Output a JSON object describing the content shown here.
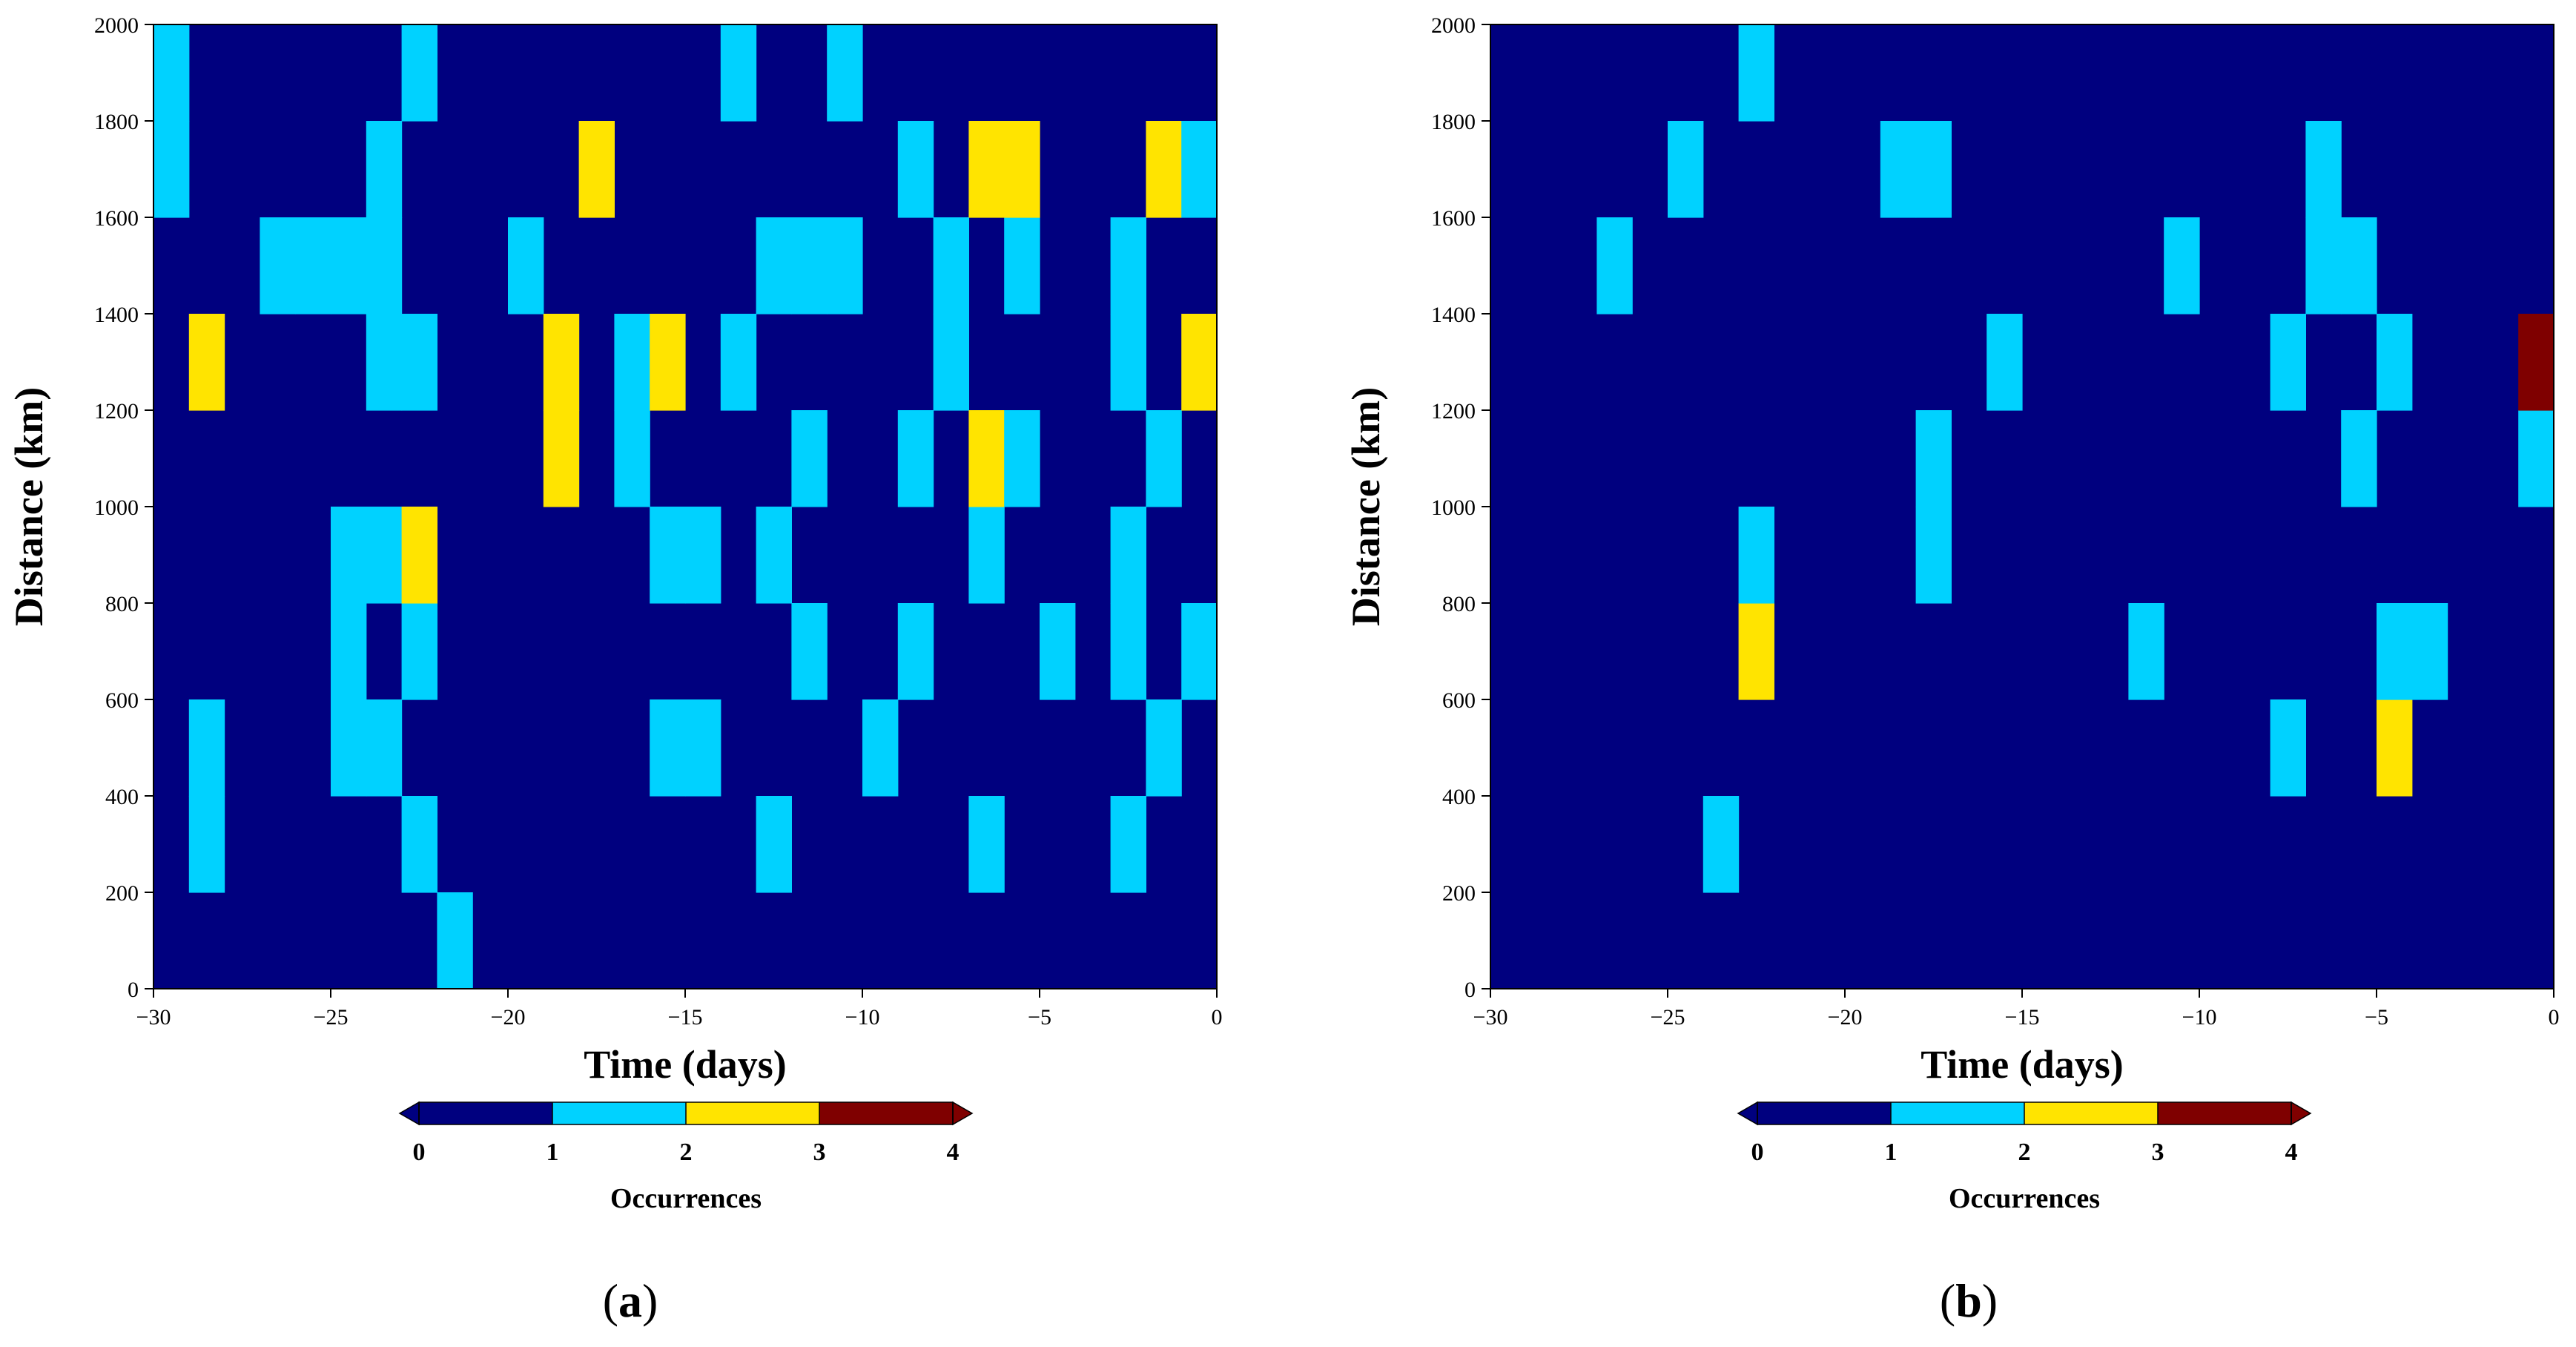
{
  "chart_data": [
    {
      "type": "heatmap",
      "panel_label": "a",
      "xlabel": "Time (days)",
      "ylabel": "Distance (km)",
      "xlim": [
        -30,
        0
      ],
      "ylim": [
        0,
        2000
      ],
      "xticks": [
        -30,
        -25,
        -20,
        -15,
        -10,
        -5,
        0
      ],
      "xtick_labels": [
        "−30",
        "−25",
        "−20",
        "−15",
        "−10",
        "−5",
        "0"
      ],
      "yticks": [
        0,
        200,
        400,
        600,
        800,
        1000,
        1200,
        1400,
        1600,
        1800,
        2000
      ],
      "ytick_labels": [
        "0",
        "200",
        "400",
        "600",
        "800",
        "1000",
        "1200",
        "1400",
        "1600",
        "1800",
        "2000"
      ],
      "x_bin_days": 1,
      "y_bin_km": 200,
      "background_value": 0,
      "cells": [
        {
          "x": -30,
          "y": 1600,
          "count": 1
        },
        {
          "x": -30,
          "y": 1800,
          "count": 1
        },
        {
          "x": -29,
          "y": 200,
          "count": 1
        },
        {
          "x": -29,
          "y": 400,
          "count": 1
        },
        {
          "x": -29,
          "y": 1200,
          "count": 2
        },
        {
          "x": -27,
          "y": 1400,
          "count": 1
        },
        {
          "x": -26,
          "y": 1400,
          "count": 1
        },
        {
          "x": -25,
          "y": 400,
          "count": 1
        },
        {
          "x": -25,
          "y": 600,
          "count": 1
        },
        {
          "x": -25,
          "y": 800,
          "count": 1
        },
        {
          "x": -25,
          "y": 1400,
          "count": 1
        },
        {
          "x": -24,
          "y": 400,
          "count": 1
        },
        {
          "x": -24,
          "y": 800,
          "count": 1
        },
        {
          "x": -24,
          "y": 1200,
          "count": 1
        },
        {
          "x": -24,
          "y": 1400,
          "count": 1
        },
        {
          "x": -24,
          "y": 1600,
          "count": 1
        },
        {
          "x": -23,
          "y": 200,
          "count": 1
        },
        {
          "x": -23,
          "y": 600,
          "count": 1
        },
        {
          "x": -23,
          "y": 800,
          "count": 2
        },
        {
          "x": -23,
          "y": 1200,
          "count": 1
        },
        {
          "x": -23,
          "y": 1800,
          "count": 1
        },
        {
          "x": -22,
          "y": 0,
          "count": 1
        },
        {
          "x": -20,
          "y": 1400,
          "count": 1
        },
        {
          "x": -19,
          "y": 1000,
          "count": 2
        },
        {
          "x": -19,
          "y": 1200,
          "count": 2
        },
        {
          "x": -18,
          "y": 1600,
          "count": 2
        },
        {
          "x": -17,
          "y": 1000,
          "count": 1
        },
        {
          "x": -17,
          "y": 1200,
          "count": 1
        },
        {
          "x": -16,
          "y": 400,
          "count": 1
        },
        {
          "x": -16,
          "y": 800,
          "count": 1
        },
        {
          "x": -16,
          "y": 1200,
          "count": 2
        },
        {
          "x": -15,
          "y": 400,
          "count": 1
        },
        {
          "x": -15,
          "y": 800,
          "count": 1
        },
        {
          "x": -14,
          "y": 1200,
          "count": 1
        },
        {
          "x": -14,
          "y": 1800,
          "count": 1
        },
        {
          "x": -13,
          "y": 200,
          "count": 1
        },
        {
          "x": -13,
          "y": 800,
          "count": 1
        },
        {
          "x": -13,
          "y": 1400,
          "count": 1
        },
        {
          "x": -12,
          "y": 600,
          "count": 1
        },
        {
          "x": -12,
          "y": 1000,
          "count": 1
        },
        {
          "x": -12,
          "y": 1400,
          "count": 1
        },
        {
          "x": -11,
          "y": 1400,
          "count": 1
        },
        {
          "x": -11,
          "y": 1800,
          "count": 1
        },
        {
          "x": -10,
          "y": 400,
          "count": 1
        },
        {
          "x": -9,
          "y": 600,
          "count": 1
        },
        {
          "x": -9,
          "y": 1000,
          "count": 1
        },
        {
          "x": -9,
          "y": 1600,
          "count": 1
        },
        {
          "x": -8,
          "y": 1200,
          "count": 1
        },
        {
          "x": -8,
          "y": 1400,
          "count": 1
        },
        {
          "x": -7,
          "y": 200,
          "count": 1
        },
        {
          "x": -7,
          "y": 800,
          "count": 1
        },
        {
          "x": -7,
          "y": 1000,
          "count": 2
        },
        {
          "x": -7,
          "y": 1600,
          "count": 2
        },
        {
          "x": -6,
          "y": 1000,
          "count": 1
        },
        {
          "x": -6,
          "y": 1400,
          "count": 1
        },
        {
          "x": -6,
          "y": 1600,
          "count": 2
        },
        {
          "x": -5,
          "y": 600,
          "count": 1
        },
        {
          "x": -3,
          "y": 200,
          "count": 1
        },
        {
          "x": -3,
          "y": 600,
          "count": 1
        },
        {
          "x": -3,
          "y": 800,
          "count": 1
        },
        {
          "x": -3,
          "y": 1200,
          "count": 1
        },
        {
          "x": -3,
          "y": 1400,
          "count": 1
        },
        {
          "x": -2,
          "y": 400,
          "count": 1
        },
        {
          "x": -2,
          "y": 1000,
          "count": 1
        },
        {
          "x": -2,
          "y": 1600,
          "count": 2
        },
        {
          "x": -1,
          "y": 600,
          "count": 1
        },
        {
          "x": -1,
          "y": 1200,
          "count": 2
        },
        {
          "x": -1,
          "y": 1600,
          "count": 1
        }
      ],
      "colorbar": {
        "label": "Occurrences",
        "ticks": [
          "0",
          "1",
          "2",
          "3",
          "4"
        ],
        "extend": "both",
        "colors": [
          "#00007f",
          "#00d2ff",
          "#ffe400",
          "#7f0000"
        ]
      }
    },
    {
      "type": "heatmap",
      "panel_label": "b",
      "xlabel": "Time (days)",
      "ylabel": "Distance (km)",
      "xlim": [
        -30,
        0
      ],
      "ylim": [
        0,
        2000
      ],
      "xticks": [
        -30,
        -25,
        -20,
        -15,
        -10,
        -5,
        0
      ],
      "xtick_labels": [
        "−30",
        "−25",
        "−20",
        "−15",
        "−10",
        "−5",
        "0"
      ],
      "yticks": [
        0,
        200,
        400,
        600,
        800,
        1000,
        1200,
        1400,
        1600,
        1800,
        2000
      ],
      "ytick_labels": [
        "0",
        "200",
        "400",
        "600",
        "800",
        "1000",
        "1200",
        "1400",
        "1600",
        "1800",
        "2000"
      ],
      "x_bin_days": 1,
      "y_bin_km": 200,
      "background_value": 0,
      "cells": [
        {
          "x": -27,
          "y": 1400,
          "count": 1
        },
        {
          "x": -25,
          "y": 1600,
          "count": 1
        },
        {
          "x": -24,
          "y": 200,
          "count": 1
        },
        {
          "x": -23,
          "y": 600,
          "count": 2
        },
        {
          "x": -23,
          "y": 800,
          "count": 1
        },
        {
          "x": -23,
          "y": 1800,
          "count": 1
        },
        {
          "x": -19,
          "y": 1600,
          "count": 1
        },
        {
          "x": -18,
          "y": 1600,
          "count": 1
        },
        {
          "x": -18,
          "y": 800,
          "count": 1
        },
        {
          "x": -18,
          "y": 1000,
          "count": 1
        },
        {
          "x": -16,
          "y": 1200,
          "count": 1
        },
        {
          "x": -12,
          "y": 600,
          "count": 1
        },
        {
          "x": -11,
          "y": 1400,
          "count": 1
        },
        {
          "x": -8,
          "y": 400,
          "count": 1
        },
        {
          "x": -8,
          "y": 1200,
          "count": 1
        },
        {
          "x": -7,
          "y": 1400,
          "count": 1
        },
        {
          "x": -7,
          "y": 1600,
          "count": 1
        },
        {
          "x": -6,
          "y": 1000,
          "count": 1
        },
        {
          "x": -6,
          "y": 1400,
          "count": 1
        },
        {
          "x": -5,
          "y": 400,
          "count": 2
        },
        {
          "x": -5,
          "y": 600,
          "count": 1
        },
        {
          "x": -5,
          "y": 1200,
          "count": 1
        },
        {
          "x": -4,
          "y": 600,
          "count": 1
        },
        {
          "x": -1,
          "y": 1000,
          "count": 1
        },
        {
          "x": -1,
          "y": 1200,
          "count": 3
        }
      ],
      "colorbar": {
        "label": "Occurrences",
        "ticks": [
          "0",
          "1",
          "2",
          "3",
          "4"
        ],
        "extend": "both",
        "colors": [
          "#00007f",
          "#00d2ff",
          "#ffe400",
          "#7f0000"
        ]
      }
    }
  ]
}
